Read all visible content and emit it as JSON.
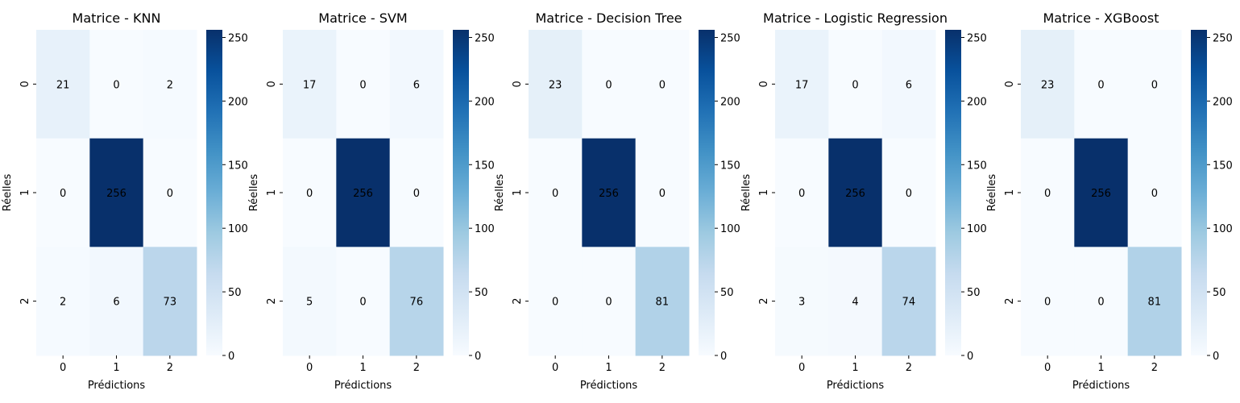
{
  "chart_data": [
    {
      "type": "heatmap",
      "title": "Matrice - KNN",
      "xlabel": "Prédictions",
      "ylabel": "Réelles",
      "x_categories": [
        "0",
        "1",
        "2"
      ],
      "y_categories": [
        "0",
        "1",
        "2"
      ],
      "values": [
        [
          21,
          0,
          2
        ],
        [
          0,
          256,
          0
        ],
        [
          2,
          6,
          73
        ]
      ],
      "colorbar": {
        "range": [
          0,
          256
        ],
        "ticks": [
          0,
          50,
          100,
          150,
          200,
          250
        ]
      },
      "colormap": "Blues",
      "grid": false
    },
    {
      "type": "heatmap",
      "title": "Matrice - SVM",
      "xlabel": "Prédictions",
      "ylabel": "Réelles",
      "x_categories": [
        "0",
        "1",
        "2"
      ],
      "y_categories": [
        "0",
        "1",
        "2"
      ],
      "values": [
        [
          17,
          0,
          6
        ],
        [
          0,
          256,
          0
        ],
        [
          5,
          0,
          76
        ]
      ],
      "colorbar": {
        "range": [
          0,
          256
        ],
        "ticks": [
          0,
          50,
          100,
          150,
          200,
          250
        ]
      },
      "colormap": "Blues",
      "grid": false
    },
    {
      "type": "heatmap",
      "title": "Matrice - Decision Tree",
      "xlabel": "Prédictions",
      "ylabel": "Réelles",
      "x_categories": [
        "0",
        "1",
        "2"
      ],
      "y_categories": [
        "0",
        "1",
        "2"
      ],
      "values": [
        [
          23,
          0,
          0
        ],
        [
          0,
          256,
          0
        ],
        [
          0,
          0,
          81
        ]
      ],
      "colorbar": {
        "range": [
          0,
          256
        ],
        "ticks": [
          0,
          50,
          100,
          150,
          200,
          250
        ]
      },
      "colormap": "Blues",
      "grid": false
    },
    {
      "type": "heatmap",
      "title": "Matrice - Logistic Regression",
      "xlabel": "Prédictions",
      "ylabel": "Réelles",
      "x_categories": [
        "0",
        "1",
        "2"
      ],
      "y_categories": [
        "0",
        "1",
        "2"
      ],
      "values": [
        [
          17,
          0,
          6
        ],
        [
          0,
          256,
          0
        ],
        [
          3,
          4,
          74
        ]
      ],
      "colorbar": {
        "range": [
          0,
          256
        ],
        "ticks": [
          0,
          50,
          100,
          150,
          200,
          250
        ]
      },
      "colormap": "Blues",
      "grid": false
    },
    {
      "type": "heatmap",
      "title": "Matrice - XGBoost",
      "xlabel": "Prédictions",
      "ylabel": "Réelles",
      "x_categories": [
        "0",
        "1",
        "2"
      ],
      "y_categories": [
        "0",
        "1",
        "2"
      ],
      "values": [
        [
          23,
          0,
          0
        ],
        [
          0,
          256,
          0
        ],
        [
          0,
          0,
          81
        ]
      ],
      "colorbar": {
        "range": [
          0,
          256
        ],
        "ticks": [
          0,
          50,
          100,
          150,
          200,
          250
        ]
      },
      "colormap": "Blues",
      "grid": false
    }
  ]
}
